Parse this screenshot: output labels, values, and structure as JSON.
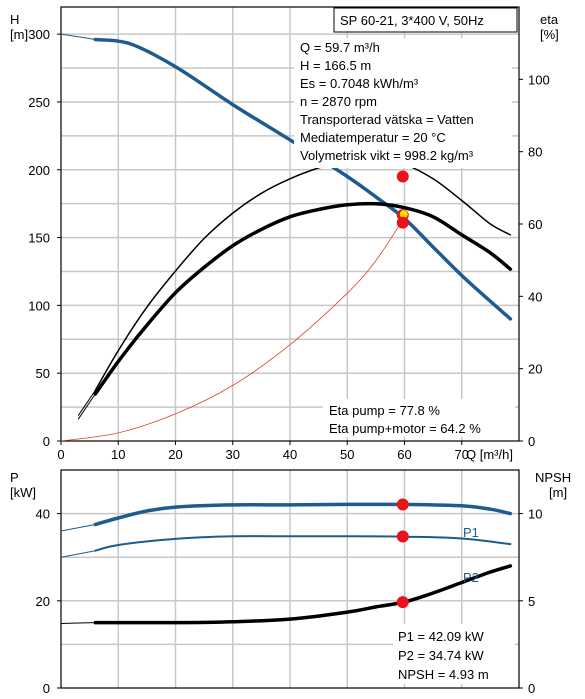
{
  "title_box": "SP 60-21, 3*400 V, 50Hz",
  "top_chart": {
    "y_left_label": [
      "H",
      "[m]"
    ],
    "y_right_label": [
      "eta",
      "[%]"
    ],
    "x_label": "Q [m³/h]",
    "info_lines": [
      "Q = 59.7 m³/h",
      "H = 166.5 m",
      "Es = 0.7048 kWh/m³",
      "n = 2870 rpm",
      "Transporterad vätska = Vatten",
      "Mediatemperatur = 20 °C",
      "Volymetrisk vikt = 998.2 kg/m³"
    ],
    "eta_lines": [
      "Eta pump = 77.8 %",
      "Eta pump+motor = 64.2 %"
    ]
  },
  "bottom_chart": {
    "y_left_label": [
      "P",
      "[kW]"
    ],
    "y_right_label": [
      "NPSH",
      "[m]"
    ],
    "series_labels": [
      "P1",
      "P2"
    ],
    "info_lines": [
      "P1 = 42.09 kW",
      "P2 = 34.74 kW",
      "NPSH = 4.93 m"
    ]
  },
  "colors": {
    "head": "#1f5b8e",
    "power": "#1f5b8e",
    "eta": "#000000",
    "system": "#e0402a",
    "marker": "#e8141b",
    "grid": "#c8c8c8"
  },
  "chart_data": [
    {
      "type": "line",
      "title": "SP 60-21, 3*400 V, 50Hz",
      "x": {
        "label": "Q [m³/h]",
        "range": [
          0,
          80
        ],
        "ticks": [
          0,
          10,
          20,
          30,
          40,
          50,
          60,
          70
        ]
      },
      "y_left": {
        "label": "H [m]",
        "range": [
          0,
          320
        ],
        "ticks": [
          0,
          50,
          100,
          150,
          200,
          250,
          300
        ]
      },
      "y_right": {
        "label": "eta [%]",
        "range": [
          0,
          120
        ],
        "ticks": [
          0,
          20,
          40,
          60,
          80,
          100
        ]
      },
      "grid": true,
      "series": [
        {
          "axis": "left",
          "points": [
            [
              0,
              300
            ],
            [
              6,
              296
            ],
            [
              12,
              293
            ],
            [
              20,
              276
            ],
            [
              30,
              248
            ],
            [
              40,
              222
            ],
            [
              50,
              195
            ],
            [
              55,
              180
            ],
            [
              60,
              164
            ],
            [
              65,
              143
            ],
            [
              70,
              122
            ],
            [
              75,
              103
            ],
            [
              78.5,
              90
            ]
          ]
        },
        {
          "axis": "left",
          "dash": true,
          "points": [
            [
              0,
              0
            ],
            [
              10,
              6
            ],
            [
              20,
              20
            ],
            [
              30,
              41
            ],
            [
              40,
              71
            ],
            [
              50,
              109
            ],
            [
              55,
              133
            ],
            [
              60,
              165
            ]
          ]
        },
        {
          "axis": "right",
          "points": [
            [
              3,
              6
            ],
            [
              6,
              13
            ],
            [
              10,
              22
            ],
            [
              15,
              32
            ],
            [
              20,
              41
            ],
            [
              25,
              48
            ],
            [
              30,
              54
            ],
            [
              35,
              58.5
            ],
            [
              40,
              62
            ],
            [
              45,
              64
            ],
            [
              50,
              65.3
            ],
            [
              55,
              65.6
            ],
            [
              60,
              64.5
            ],
            [
              65,
              62
            ],
            [
              70,
              57
            ],
            [
              75,
              52
            ],
            [
              78.5,
              47.5
            ]
          ]
        },
        {
          "axis": "right",
          "points": [
            [
              3,
              7
            ],
            [
              6,
              14
            ],
            [
              10,
              25
            ],
            [
              15,
              37
            ],
            [
              20,
              47
            ],
            [
              25,
              56
            ],
            [
              30,
              63
            ],
            [
              35,
              68.5
            ],
            [
              40,
              72.5
            ],
            [
              45,
              75.5
            ],
            [
              50,
              77.5
            ],
            [
              55,
              78
            ],
            [
              60,
              76.5
            ],
            [
              65,
              72.5
            ],
            [
              70,
              66.5
            ],
            [
              75,
              60
            ],
            [
              78.5,
              57
            ]
          ]
        }
      ],
      "markers": [
        [
          59.7,
          166.5
        ],
        [
          59.7,
          195
        ],
        [
          59.7,
          161
        ]
      ],
      "annotations": [
        "Eta pump = 77.8 %",
        "Eta pump+motor = 64.2 %"
      ]
    },
    {
      "type": "line",
      "x": {
        "range": [
          0,
          80
        ]
      },
      "y_left": {
        "label": "P [kW]",
        "range": [
          0,
          50
        ],
        "ticks": [
          0,
          20,
          40
        ]
      },
      "y_right": {
        "label": "NPSH [m]",
        "range": [
          0,
          12.5
        ],
        "ticks": [
          0,
          5,
          10
        ]
      },
      "grid": true,
      "series": [
        {
          "name": "P1",
          "axis": "left",
          "points": [
            [
              0,
              36
            ],
            [
              6,
              37.5
            ],
            [
              10,
              39
            ],
            [
              15,
              40.6
            ],
            [
              20,
              41.5
            ],
            [
              30,
              42
            ],
            [
              40,
              42
            ],
            [
              50,
              42.1
            ],
            [
              60,
              42.1
            ],
            [
              70,
              41.8
            ],
            [
              75,
              41
            ],
            [
              78.5,
              40
            ]
          ]
        },
        {
          "name": "P2",
          "axis": "left",
          "points": [
            [
              0,
              30
            ],
            [
              6,
              31.5
            ],
            [
              10,
              32.8
            ],
            [
              20,
              34.2
            ],
            [
              30,
              34.8
            ],
            [
              40,
              34.8
            ],
            [
              50,
              34.8
            ],
            [
              60,
              34.7
            ],
            [
              70,
              34.3
            ],
            [
              78.5,
              33
            ]
          ]
        },
        {
          "axis": "right",
          "points": [
            [
              0,
              3.7
            ],
            [
              6,
              3.75
            ],
            [
              10,
              3.75
            ],
            [
              20,
              3.75
            ],
            [
              30,
              3.8
            ],
            [
              40,
              3.95
            ],
            [
              50,
              4.35
            ],
            [
              55,
              4.65
            ],
            [
              60,
              4.93
            ],
            [
              65,
              5.45
            ],
            [
              70,
              6.05
            ],
            [
              75,
              6.65
            ],
            [
              78.5,
              7
            ]
          ]
        }
      ],
      "markers": [
        [
          59.7,
          42.09
        ],
        [
          59.7,
          34.74
        ],
        [
          59.7,
          19.7
        ]
      ]
    }
  ]
}
